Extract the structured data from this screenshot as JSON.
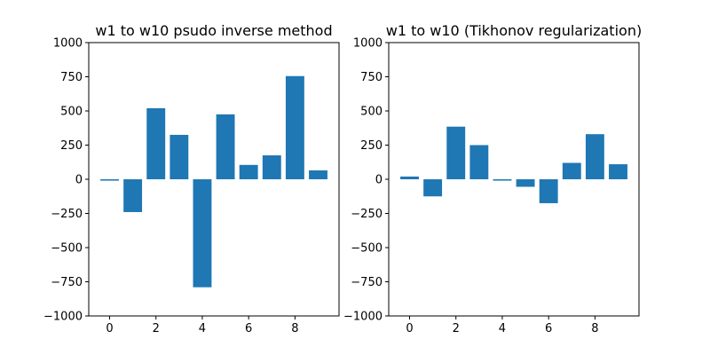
{
  "chart_data": [
    {
      "type": "bar",
      "title": "w1 to w10 psudo inverse method",
      "xlabel": "",
      "ylabel": "",
      "x": [
        0,
        1,
        2,
        3,
        4,
        5,
        6,
        7,
        8,
        9
      ],
      "values": [
        -10,
        -240,
        520,
        325,
        -790,
        475,
        105,
        175,
        755,
        65
      ],
      "xlim": [
        -0.9,
        9.9
      ],
      "ylim": [
        -1000,
        1000
      ],
      "xticks": [
        0,
        2,
        4,
        6,
        8
      ],
      "yticks": [
        -1000,
        -750,
        -500,
        -250,
        0,
        250,
        500,
        750,
        1000
      ],
      "grid": false,
      "bar_color": "#1f77b4"
    },
    {
      "type": "bar",
      "title": "w1 to w10 (Tikhonov regularization)",
      "xlabel": "",
      "ylabel": "",
      "x": [
        0,
        1,
        2,
        3,
        4,
        5,
        6,
        7,
        8,
        9
      ],
      "values": [
        20,
        -125,
        385,
        250,
        -10,
        -55,
        -175,
        120,
        330,
        110
      ],
      "xlim": [
        -0.9,
        9.9
      ],
      "ylim": [
        -1000,
        1000
      ],
      "xticks": [
        0,
        2,
        4,
        6,
        8
      ],
      "yticks": [
        -1000,
        -750,
        -500,
        -250,
        0,
        250,
        500,
        750,
        1000
      ],
      "grid": false,
      "bar_color": "#1f77b4"
    }
  ]
}
